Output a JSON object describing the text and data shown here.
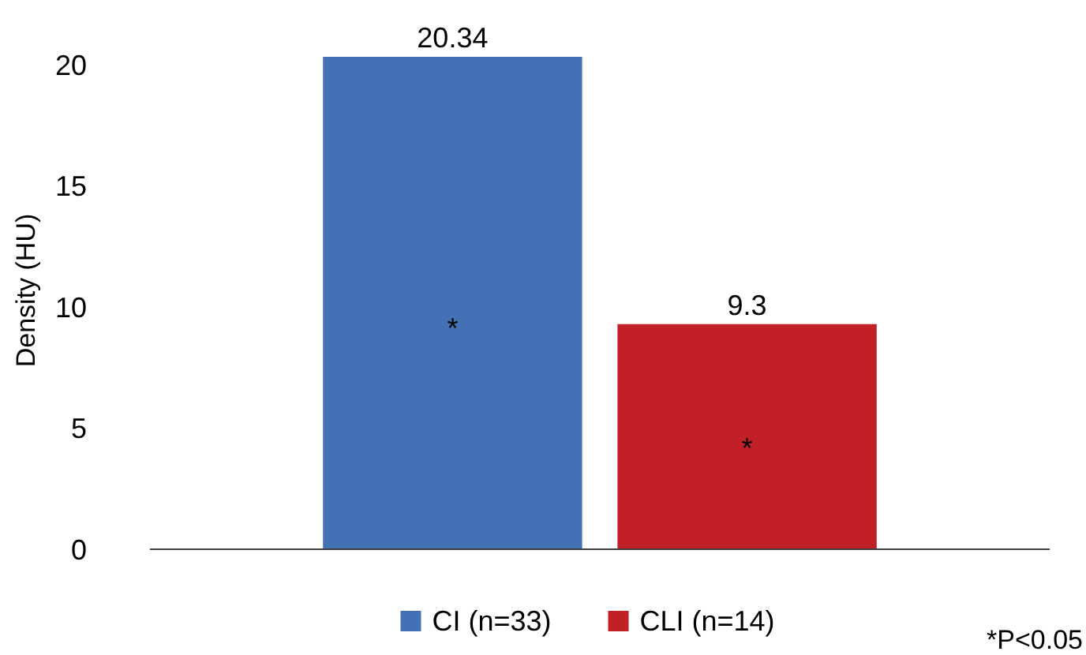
{
  "chart_data": {
    "type": "bar",
    "ylabel": "Density (HU)",
    "categories": [
      null
    ],
    "series": [
      {
        "name": "CI (n=33)",
        "color": "#4470b6",
        "values": [
          20.34
        ]
      },
      {
        "name": "CLI (n=14)",
        "color": "#c02026",
        "values": [
          9.3
        ]
      }
    ],
    "ylim": [
      0,
      20.34
    ],
    "yticks": [
      0,
      5,
      10,
      15,
      20
    ],
    "grid": false,
    "legend": "bottom",
    "data_labels": true,
    "annotations": [
      "*",
      "*",
      "*P<0.05"
    ]
  }
}
